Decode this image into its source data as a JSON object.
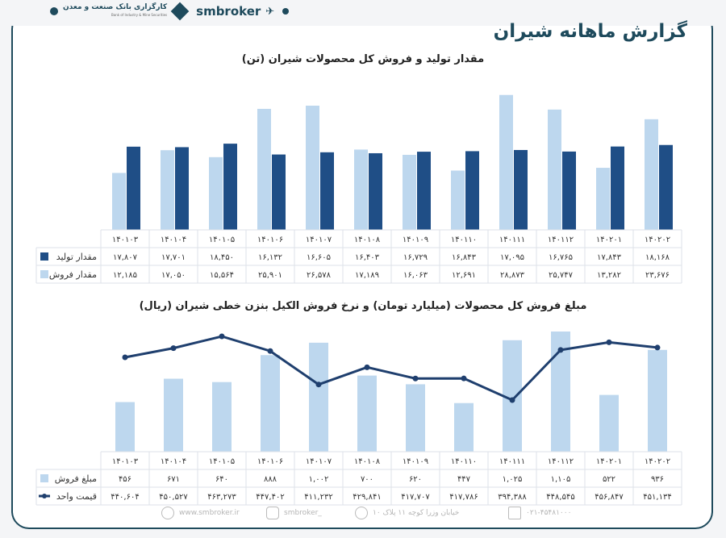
{
  "header": {
    "title": "گزارش ماهانه شیران",
    "brand": "smbroker",
    "logo_text_fa": "کارگزاری بانک صنعت و معدن",
    "logo_text_en": "Bank of Industry & Mine Securities"
  },
  "colors": {
    "dark": "#1f4e86",
    "light": "#bdd7ee",
    "line": "#1f3f6e"
  },
  "chart_data": [
    {
      "type": "bar",
      "title": "مقدار تولید و فروش کل محصولات شیران (تن)",
      "categories": [
        "۱۴۰۱۰۳",
        "۱۴۰۱۰۴",
        "۱۴۰۱۰۵",
        "۱۴۰۱۰۶",
        "۱۴۰۱۰۷",
        "۱۴۰۱۰۸",
        "۱۴۰۱۰۹",
        "۱۴۰۱۱۰",
        "۱۴۰۱۱۱",
        "۱۴۰۱۱۲",
        "۱۴۰۲۰۱",
        "۱۴۰۲۰۲"
      ],
      "ylim": [
        0,
        29000
      ],
      "series": [
        {
          "name": "مقدار تولید",
          "color": "#1f4e86",
          "values": [
            17807,
            17701,
            18450,
            16132,
            16605,
            16403,
            16729,
            16843,
            17095,
            16765,
            17843,
            18168
          ],
          "labels": [
            "۱۷,۸۰۷",
            "۱۷,۷۰۱",
            "۱۸,۴۵۰",
            "۱۶,۱۳۲",
            "۱۶,۶۰۵",
            "۱۶,۴۰۳",
            "۱۶,۷۲۹",
            "۱۶,۸۴۳",
            "۱۷,۰۹۵",
            "۱۶,۷۶۵",
            "۱۷,۸۴۳",
            "۱۸,۱۶۸"
          ]
        },
        {
          "name": "مقدار فروش",
          "color": "#bdd7ee",
          "values": [
            12185,
            17050,
            15564,
            25901,
            26578,
            17189,
            16063,
            12691,
            28873,
            25747,
            13282,
            23676
          ],
          "labels": [
            "۱۲,۱۸۵",
            "۱۷,۰۵۰",
            "۱۵,۵۶۴",
            "۲۵,۹۰۱",
            "۲۶,۵۷۸",
            "۱۷,۱۸۹",
            "۱۶,۰۶۳",
            "۱۲,۶۹۱",
            "۲۸,۸۷۳",
            "۲۵,۷۴۷",
            "۱۳,۲۸۲",
            "۲۳,۶۷۶"
          ]
        }
      ]
    },
    {
      "type": "bar+line",
      "title": "مبلغ فروش کل محصولات (میلیارد تومان) و نرخ فروش الکیل بنزن خطی شیران (ریال)",
      "categories": [
        "۱۴۰۱۰۳",
        "۱۴۰۱۰۴",
        "۱۴۰۱۰۵",
        "۱۴۰۱۰۶",
        "۱۴۰۱۰۷",
        "۱۴۰۱۰۸",
        "۱۴۰۱۰۹",
        "۱۴۰۱۱۰",
        "۱۴۰۱۱۱",
        "۱۴۰۱۱۲",
        "۱۴۰۲۰۱",
        "۱۴۰۲۰۲"
      ],
      "series": [
        {
          "name": "مبلغ فروش",
          "type": "bar",
          "color": "#bdd7ee",
          "ylim": [
            0,
            1110
          ],
          "values": [
            456,
            671,
            640,
            888,
            1002,
            700,
            620,
            447,
            1025,
            1105,
            522,
            936
          ],
          "labels": [
            "۴۵۶",
            "۶۷۱",
            "۶۴۰",
            "۸۸۸",
            "۱,۰۰۲",
            "۷۰۰",
            "۶۲۰",
            "۴۴۷",
            "۱,۰۲۵",
            "۱,۱۰۵",
            "۵۲۲",
            "۹۳۶"
          ]
        },
        {
          "name": "قیمت واحد",
          "type": "line",
          "color": "#1f3f6e",
          "values": [
            440604,
            450527,
            463273,
            447402,
            411232,
            429841,
            417707,
            417786,
            394388,
            448545,
            456847,
            451134
          ],
          "labels": [
            "۴۴۰,۶۰۴",
            "۴۵۰,۵۲۷",
            "۴۶۳,۲۷۳",
            "۴۴۷,۴۰۲",
            "۴۱۱,۲۳۲",
            "۴۲۹,۸۴۱",
            "۴۱۷,۷۰۷",
            "۴۱۷,۷۸۶",
            "۳۹۴,۳۸۸",
            "۴۴۸,۵۴۵",
            "۴۵۶,۸۴۷",
            "۴۵۱,۱۳۴"
          ]
        }
      ]
    }
  ],
  "footer": {
    "website": "www.smbroker.ir",
    "instagram": "smbroker_",
    "address": "خیابان وزرا کوچه ۱۱ پلاک ۱۰",
    "phone": "۰۲۱-۴۵۴۸۱۰۰۰"
  }
}
